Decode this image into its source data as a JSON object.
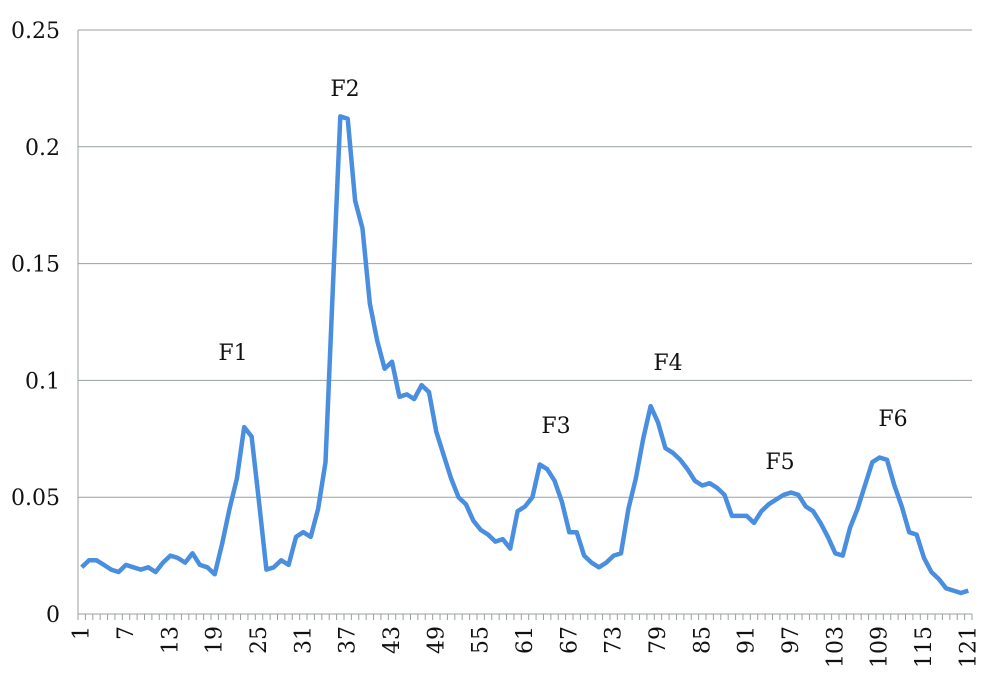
{
  "chart_data": {
    "type": "line",
    "categories": [
      "1",
      null,
      null,
      null,
      null,
      null,
      "7",
      null,
      null,
      null,
      null,
      null,
      "13",
      null,
      null,
      null,
      null,
      null,
      "19",
      null,
      null,
      null,
      null,
      null,
      "25",
      null,
      null,
      null,
      null,
      null,
      "31",
      null,
      null,
      null,
      null,
      null,
      "37",
      null,
      null,
      null,
      null,
      null,
      "43",
      null,
      null,
      null,
      null,
      null,
      "49",
      null,
      null,
      null,
      null,
      null,
      "55",
      null,
      null,
      null,
      null,
      null,
      "61",
      null,
      null,
      null,
      null,
      null,
      "67",
      null,
      null,
      null,
      null,
      null,
      "73",
      null,
      null,
      null,
      null,
      null,
      "79",
      null,
      null,
      null,
      null,
      null,
      "85",
      null,
      null,
      null,
      null,
      null,
      "91",
      null,
      null,
      null,
      null,
      null,
      "97",
      null,
      null,
      null,
      null,
      null,
      "103",
      null,
      null,
      null,
      null,
      null,
      "109",
      null,
      null,
      null,
      null,
      null,
      "115",
      null,
      null,
      null,
      null,
      null,
      "121"
    ],
    "values": [
      0.02,
      0.023,
      0.023,
      0.021,
      0.019,
      0.018,
      0.021,
      0.02,
      0.019,
      0.02,
      0.018,
      0.022,
      0.025,
      0.024,
      0.022,
      0.026,
      0.021,
      0.02,
      0.017,
      0.03,
      0.045,
      0.058,
      0.08,
      0.076,
      0.048,
      0.019,
      0.02,
      0.023,
      0.021,
      0.033,
      0.035,
      0.033,
      0.045,
      0.065,
      0.14,
      0.213,
      0.212,
      0.177,
      0.165,
      0.133,
      0.117,
      0.105,
      0.108,
      0.093,
      0.094,
      0.092,
      0.098,
      0.095,
      0.078,
      0.068,
      0.058,
      0.05,
      0.047,
      0.04,
      0.036,
      0.034,
      0.031,
      0.032,
      0.028,
      0.044,
      0.046,
      0.05,
      0.064,
      0.062,
      0.057,
      0.048,
      0.035,
      0.035,
      0.025,
      0.022,
      0.02,
      0.022,
      0.025,
      0.026,
      0.045,
      0.058,
      0.075,
      0.089,
      0.082,
      0.071,
      0.069,
      0.066,
      0.062,
      0.057,
      0.055,
      0.056,
      0.054,
      0.051,
      0.042,
      0.042,
      0.042,
      0.039,
      0.044,
      0.047,
      0.049,
      0.051,
      0.052,
      0.051,
      0.046,
      0.044,
      0.039,
      0.033,
      0.026,
      0.025,
      0.037,
      0.045,
      0.055,
      0.065,
      0.067,
      0.066,
      0.055,
      0.046,
      0.035,
      0.034,
      0.024,
      0.018,
      0.015,
      0.011,
      0.01,
      0.009,
      0.01
    ],
    "color": "#4a8ee0",
    "ylim": [
      0,
      0.25
    ],
    "yticks": [
      0,
      0.05,
      0.1,
      0.15,
      0.2,
      0.25
    ],
    "grid": true,
    "annotations": [
      "F1",
      "F2",
      "F3",
      "F4",
      "F5",
      "F6"
    ]
  }
}
